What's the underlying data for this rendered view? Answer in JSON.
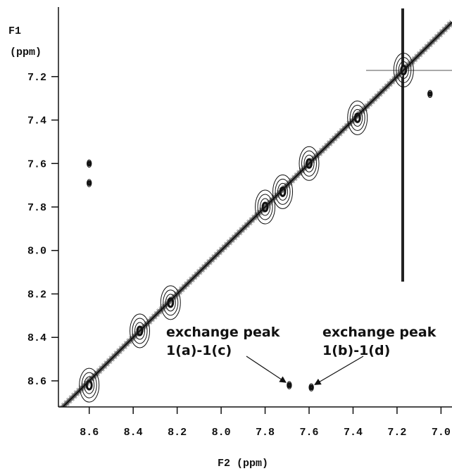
{
  "chart_data": {
    "type": "scatter",
    "xlabel": "F2 (ppm)",
    "ylabel": [
      "F1",
      "(ppm)"
    ],
    "xlim": [
      8.74,
      6.95
    ],
    "ylim": [
      6.88,
      8.72
    ],
    "xticks": [
      8.6,
      8.4,
      8.2,
      {
        "value": 8.0,
        "label": "8.0"
      },
      7.8,
      7.6,
      7.4,
      7.2,
      {
        "value": 7.0,
        "label": "7.0"
      }
    ],
    "yticks": [
      7.2,
      7.4,
      7.6,
      7.8,
      {
        "value": 8.0,
        "label": "8.0"
      },
      8.2,
      8.4,
      8.6
    ],
    "color": "#111111",
    "x": [
      8.6,
      8.37,
      8.23,
      7.8,
      7.72,
      7.6,
      7.38,
      7.17,
      8.6,
      8.6,
      7.69,
      7.59,
      7.05
    ],
    "y": [
      8.62,
      8.37,
      8.24,
      7.8,
      7.73,
      7.6,
      7.39,
      7.17,
      7.6,
      7.69,
      8.62,
      8.63,
      7.28
    ],
    "annotations": [
      {
        "text": [
          "exchange peak",
          "1(a)-1(c)"
        ]
      },
      {
        "text": [
          "exchange peak",
          "1(b)-1(d)"
        ]
      }
    ]
  }
}
